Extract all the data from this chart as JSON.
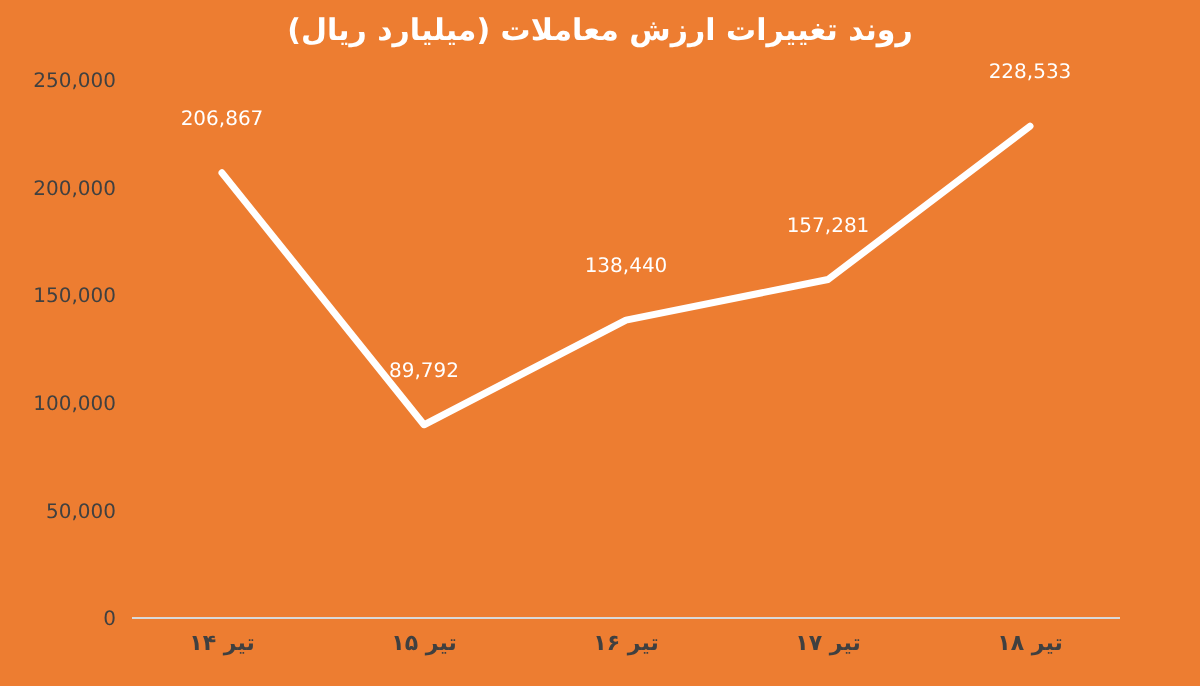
{
  "chart_data": {
    "type": "line",
    "title": "روند تغییرات ارزش معاملات (میلیارد ریال)",
    "categories": [
      "۱۴ تیر",
      "۱۵ تیر",
      "۱۶ تیر",
      "۱۷ تیر",
      "۱۸ تیر"
    ],
    "series": [
      {
        "color": "#ffffff",
        "values": [
          206867,
          89792,
          138440,
          157281,
          228533
        ],
        "value_labels": [
          "206,867",
          "89,792",
          "138,440",
          "157,281",
          "228,533"
        ]
      }
    ],
    "ylim": [
      0,
      250000
    ],
    "yticks": [
      0,
      {
        "value": 50000,
        "label": "50,000"
      },
      {
        "value": 100000,
        "label": "100,000"
      },
      {
        "value": 150000,
        "label": "150,000"
      },
      {
        "value": 200000,
        "label": "200,000"
      },
      {
        "value": 250000,
        "label": "250,000"
      }
    ],
    "marker": "none",
    "line_style": "solid"
  }
}
